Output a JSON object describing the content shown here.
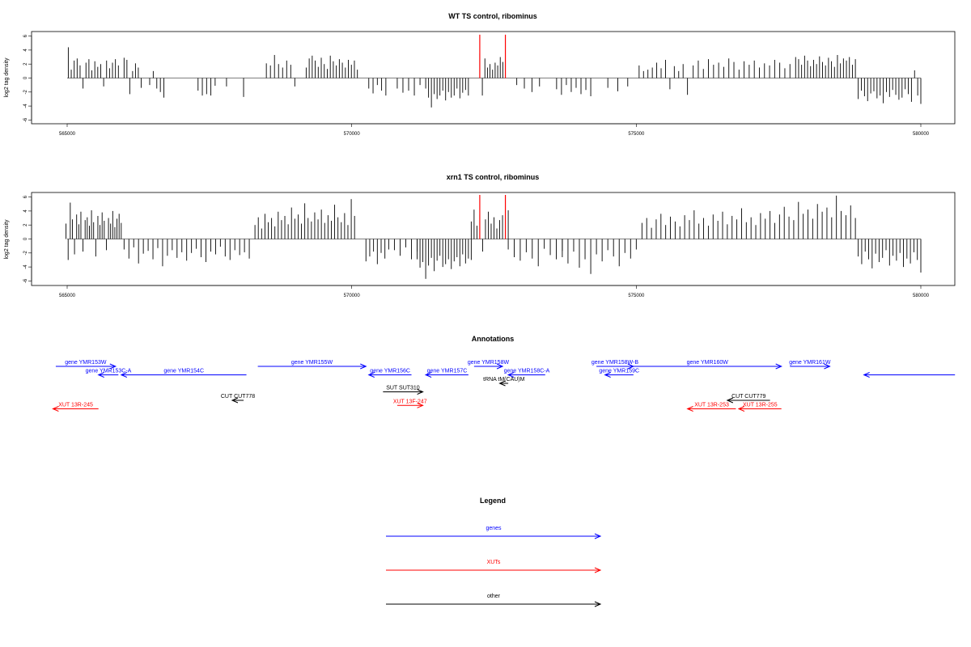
{
  "chart_data": [
    {
      "type": "bar",
      "title": "WT TS control, ribominus",
      "ylabel": "log2 tag density",
      "xlabel": "",
      "xlim": [
        565000,
        580000
      ],
      "ylim": [
        -6,
        6
      ],
      "xticks": [
        "565000",
        "570000",
        "575000",
        "580000"
      ],
      "xtick_values": [
        565000,
        570000,
        575000,
        580000
      ],
      "yticks": [
        "-6",
        "-4",
        "-2",
        "0",
        "2",
        "4",
        "6"
      ],
      "ytick_values": [
        -6,
        -4,
        -2,
        0,
        2,
        4,
        6
      ],
      "grid": false,
      "colors": {
        "bars": "#000000",
        "highlight": "#ff0000"
      },
      "highlights": [
        {
          "x": 572250,
          "value": 6.2
        },
        {
          "x": 572700,
          "value": 6.2
        }
      ],
      "segments": [
        {
          "x0": 565020,
          "x1": 565900,
          "values": [
            4.4,
            1.2,
            2.5,
            2.8,
            1.8,
            -1.5,
            2.2,
            2.7,
            1.1,
            2.4,
            1.6,
            2.0,
            -1.2,
            2.5,
            1.4,
            2.2,
            2.7,
            1.8
          ]
        },
        {
          "x0": 566000,
          "x1": 566300,
          "values": [
            2.9,
            2.6,
            -2.3,
            1.0,
            2.1,
            1.5,
            -1.4
          ]
        },
        {
          "x0": 566450,
          "x1": 566700,
          "values": [
            -1.0,
            1.0,
            -1.5,
            -2.0,
            -2.8
          ]
        },
        {
          "x0": 567300,
          "x1": 567600,
          "values": [
            -1.8,
            -2.5,
            -2.3,
            -2.5,
            -1.1
          ]
        },
        {
          "x0": 567800,
          "x1": 568100,
          "values": [
            -1.2,
            -2.7
          ]
        },
        {
          "x0": 568500,
          "x1": 569000,
          "values": [
            2.1,
            1.8,
            3.3,
            2.0,
            1.5,
            2.5,
            1.9,
            -1.2
          ]
        },
        {
          "x0": 569200,
          "x1": 570100,
          "values": [
            1.5,
            2.8,
            3.2,
            2.5,
            1.6,
            2.9,
            2.0,
            1.3,
            3.2,
            2.4,
            1.8,
            2.7,
            2.2,
            1.5,
            2.6,
            1.9,
            2.5,
            1.2
          ]
        },
        {
          "x0": 570300,
          "x1": 570600,
          "values": [
            -1.5,
            -2.2,
            -1.0,
            -1.8,
            -2.5
          ]
        },
        {
          "x0": 570800,
          "x1": 571200,
          "values": [
            -1.5,
            -2.1,
            -1.8,
            -2.5,
            -1.0
          ]
        },
        {
          "x0": 571300,
          "x1": 572050,
          "values": [
            -1.5,
            -2.8,
            -4.2,
            -2.3,
            -3.0,
            -2.5,
            -1.8,
            -3.2,
            -2.0,
            -2.8,
            -2.5,
            -1.5,
            -2.9,
            -2.1,
            -1.7,
            -2.5
          ]
        },
        {
          "x0": 572250,
          "x1": 572700,
          "values": [
            3.5,
            -2.5,
            2.8,
            1.5,
            2.0,
            1.2,
            2.2,
            1.8,
            3.0,
            2.3,
            1.1
          ]
        },
        {
          "x0": 572900,
          "x1": 573300,
          "values": [
            -1.0,
            -1.5,
            -2.0,
            -1.2
          ]
        },
        {
          "x0": 573600,
          "x1": 574200,
          "values": [
            -1.6,
            -2.4,
            -1.0,
            -2.0,
            -1.4,
            -2.3,
            -1.7,
            -2.6
          ]
        },
        {
          "x0": 574500,
          "x1": 574850,
          "values": [
            -1.4,
            -1.9,
            -1.2
          ]
        },
        {
          "x0": 575050,
          "x1": 575900,
          "values": [
            1.8,
            1.0,
            1.2,
            1.5,
            2.2,
            1.4,
            2.6,
            -1.6,
            1.7,
            1.0,
            2.0,
            -2.4
          ]
        },
        {
          "x0": 576000,
          "x1": 577700,
          "values": [
            1.8,
            2.5,
            1.3,
            2.7,
            1.9,
            2.2,
            1.6,
            2.8,
            2.3,
            1.2,
            2.4,
            1.9,
            2.5,
            1.5,
            2.1,
            1.8,
            2.6,
            2.2,
            1.4,
            2.0
          ]
        },
        {
          "x0": 577800,
          "x1": 578850,
          "values": [
            3.0,
            2.7,
            1.9,
            3.2,
            2.5,
            1.7,
            2.6,
            2.0,
            3.1,
            2.3,
            1.8,
            2.9,
            2.4,
            1.6,
            3.3,
            2.1,
            2.8,
            2.5,
            3.0,
            1.9,
            2.7
          ]
        },
        {
          "x0": 578900,
          "x1": 580000,
          "values": [
            -3.0,
            -1.8,
            -2.6,
            -3.3,
            -2.2,
            -1.9,
            -2.9,
            -2.5,
            -3.6,
            -2.0,
            -2.7,
            -1.7,
            -2.4,
            -3.1,
            -2.8,
            -1.6,
            -2.3,
            -3.4,
            1.1,
            -2.5,
            -3.7
          ]
        }
      ]
    },
    {
      "type": "bar",
      "title": "xrn1 TS control, ribominus",
      "ylabel": "log2 tag density",
      "xlabel": "",
      "xlim": [
        565000,
        580000
      ],
      "ylim": [
        -6,
        6
      ],
      "xticks": [
        "565000",
        "570000",
        "575000",
        "580000"
      ],
      "xtick_values": [
        565000,
        570000,
        575000,
        580000
      ],
      "yticks": [
        "-6",
        "-4",
        "-2",
        "0",
        "2",
        "4",
        "6"
      ],
      "ytick_values": [
        -6,
        -4,
        -2,
        0,
        2,
        4,
        6
      ],
      "grid": false,
      "colors": {
        "bars": "#000000",
        "highlight": "#ff0000"
      },
      "highlights": [
        {
          "x": 572250,
          "value": 6.3
        },
        {
          "x": 572700,
          "value": 6.3
        }
      ],
      "segments": [
        {
          "x0": 564980,
          "x1": 565950,
          "values": [
            2.2,
            -3.0,
            5.2,
            2.8,
            -2.2,
            3.5,
            2.1,
            3.9,
            -1.8,
            2.7,
            3.1,
            1.9,
            4.1,
            2.4,
            -2.5,
            3.3,
            2.0,
            3.8,
            2.6,
            -1.6,
            3.0,
            2.2,
            4.0,
            1.7,
            2.9,
            3.6,
            2.3
          ]
        },
        {
          "x0": 566000,
          "x1": 568200,
          "values": [
            -1.5,
            -2.8,
            -1.2,
            -3.5,
            -2.1,
            -1.7,
            -2.9,
            -1.3,
            -3.9,
            -2.4,
            -1.6,
            -2.7,
            -1.9,
            -3.1,
            -2.0,
            -1.4,
            -2.6,
            -3.3,
            -1.8,
            -2.2,
            -1.1,
            -2.5,
            -3.0,
            -1.6,
            -2.3,
            -1.9,
            -2.8
          ]
        },
        {
          "x0": 568300,
          "x1": 570050,
          "values": [
            2.0,
            3.1,
            1.5,
            3.6,
            2.4,
            3.0,
            1.8,
            3.9,
            2.7,
            3.3,
            2.1,
            4.5,
            2.9,
            3.5,
            2.2,
            5.1,
            3.0,
            2.5,
            3.8,
            2.8,
            4.2,
            2.3,
            3.4,
            2.6,
            4.9,
            3.1,
            2.4,
            3.7,
            2.0,
            5.7,
            3.3
          ]
        },
        {
          "x0": 570250,
          "x1": 570650,
          "values": [
            -3.2,
            -2.5,
            -1.8,
            -3.6,
            -2.0,
            -2.8,
            -1.5
          ]
        },
        {
          "x0": 570750,
          "x1": 571150,
          "values": [
            -1.6,
            -2.4,
            -1.2,
            -2.9,
            -1.8
          ]
        },
        {
          "x0": 571150,
          "x1": 572100,
          "values": [
            -2.9,
            -4.1,
            -3.3,
            -5.7,
            -3.8,
            -2.7,
            -4.6,
            -3.1,
            -2.4,
            -4.0,
            -3.6,
            -2.9,
            -4.3,
            -3.2,
            -2.6,
            -3.9,
            -2.2,
            -3.5,
            -2.8,
            -3.0
          ]
        },
        {
          "x0": 572100,
          "x1": 572750,
          "values": [
            2.5,
            4.2,
            1.9,
            3.5,
            -1.8,
            2.8,
            3.9,
            2.2,
            3.1,
            1.5,
            2.7,
            3.4,
            2.0,
            4.1
          ]
        },
        {
          "x0": 572750,
          "x1": 573700,
          "values": [
            -1.5,
            -2.6,
            -3.1,
            -1.9,
            -2.8,
            -3.9,
            -1.4,
            -2.3,
            -2.9,
            -1.7
          ]
        },
        {
          "x0": 573700,
          "x1": 575000,
          "values": [
            -2.6,
            -3.5,
            -1.8,
            -4.1,
            -2.9,
            -5.0,
            -2.2,
            -3.2,
            -1.6,
            -2.5,
            -3.9,
            -2.0,
            -2.8,
            -1.5
          ]
        },
        {
          "x0": 575100,
          "x1": 578850,
          "values": [
            2.3,
            3.0,
            1.6,
            2.8,
            3.6,
            2.0,
            3.2,
            2.5,
            1.8,
            3.4,
            2.7,
            4.1,
            2.2,
            3.0,
            1.9,
            3.5,
            2.6,
            3.9,
            2.1,
            3.3,
            2.8,
            4.4,
            2.4,
            3.1,
            2.0,
            3.7,
            2.9,
            4.0,
            2.3,
            3.5,
            4.6,
            3.2,
            2.7,
            5.3,
            3.6,
            4.2,
            2.9,
            5.0,
            3.9,
            4.5,
            3.1,
            6.2,
            4.0,
            3.4,
            4.8,
            3.0
          ]
        },
        {
          "x0": 578900,
          "x1": 580000,
          "values": [
            -2.5,
            -3.6,
            -1.8,
            -2.9,
            -4.2,
            -2.1,
            -3.3,
            -2.7,
            -1.6,
            -3.8,
            -2.4,
            -3.1,
            -2.0,
            -4.0,
            -2.8,
            -3.5,
            -1.9,
            -3.0,
            -4.8
          ]
        }
      ]
    }
  ],
  "annotations": {
    "title": "Annotations",
    "xlim": [
      565000,
      580000
    ],
    "colors": {
      "gene": "#0000ff",
      "xut": "#ff0000",
      "other": "#000000"
    },
    "features": [
      {
        "label": "gene YMR153W",
        "kind": "gene",
        "start": 564800,
        "end": 565850,
        "strand": "+",
        "row": 0
      },
      {
        "label": "gene YMR153C-A",
        "kind": "gene",
        "start": 565550,
        "end": 565900,
        "strand": "-",
        "row": 1
      },
      {
        "label": "gene YMR154C",
        "kind": "gene",
        "start": 565950,
        "end": 568150,
        "strand": "-",
        "row": 1
      },
      {
        "label": "gene YMR155W",
        "kind": "gene",
        "start": 568350,
        "end": 570250,
        "strand": "+",
        "row": 0
      },
      {
        "label": "gene YMR156C",
        "kind": "gene",
        "start": 570300,
        "end": 571050,
        "strand": "-",
        "row": 1
      },
      {
        "label": "gene YMR157C",
        "kind": "gene",
        "start": 571300,
        "end": 572050,
        "strand": "-",
        "row": 1
      },
      {
        "label": "gene YMR158W",
        "kind": "gene",
        "start": 572150,
        "end": 572650,
        "strand": "+",
        "row": 0
      },
      {
        "label": "gene YMR158C-A",
        "kind": "gene",
        "start": 572750,
        "end": 573400,
        "strand": "-",
        "row": 1
      },
      {
        "label": "gene YMR158W-B",
        "kind": "gene",
        "start": 574300,
        "end": 574950,
        "strand": "+",
        "row": 0
      },
      {
        "label": "gene YMR159C",
        "kind": "gene",
        "start": 574450,
        "end": 574950,
        "strand": "-",
        "row": 1
      },
      {
        "label": "gene YMR160W",
        "kind": "gene",
        "start": 574950,
        "end": 577550,
        "strand": "+",
        "row": 0
      },
      {
        "label": "gene YMR161W",
        "kind": "gene",
        "start": 577700,
        "end": 578400,
        "strand": "+",
        "row": 0
      },
      {
        "label": "",
        "kind": "gene",
        "start": 579000,
        "end": 580600,
        "strand": "-",
        "row": 1
      },
      {
        "label": "SUT SUT310",
        "kind": "other",
        "start": 570550,
        "end": 571250,
        "strand": "+",
        "row": 3
      },
      {
        "label": "tRNA tM(CAU)M",
        "kind": "other",
        "start": 572600,
        "end": 572750,
        "strand": "-",
        "row": 2
      },
      {
        "label": "CUT CUT778",
        "kind": "other",
        "start": 567900,
        "end": 568100,
        "strand": "-",
        "row": 4
      },
      {
        "label": "CUT CUT779",
        "kind": "other",
        "start": 576600,
        "end": 577350,
        "strand": "-",
        "row": 4
      },
      {
        "label": "XUT 13R-245",
        "kind": "xut",
        "start": 564750,
        "end": 565550,
        "strand": "-",
        "row": 5
      },
      {
        "label": "XUT 13F-247",
        "kind": "xut",
        "start": 570800,
        "end": 571250,
        "strand": "+",
        "row": 4.6
      },
      {
        "label": "XUT 13R-253",
        "kind": "xut",
        "start": 575900,
        "end": 576750,
        "strand": "-",
        "row": 5
      },
      {
        "label": "XUT 13R-255",
        "kind": "xut",
        "start": 576800,
        "end": 577550,
        "strand": "-",
        "row": 5
      }
    ]
  },
  "legend": {
    "title": "Legend",
    "items": [
      {
        "label": "genes",
        "color": "#0000ff"
      },
      {
        "label": "XUTs",
        "color": "#ff0000"
      },
      {
        "label": "other",
        "color": "#000000"
      }
    ]
  }
}
